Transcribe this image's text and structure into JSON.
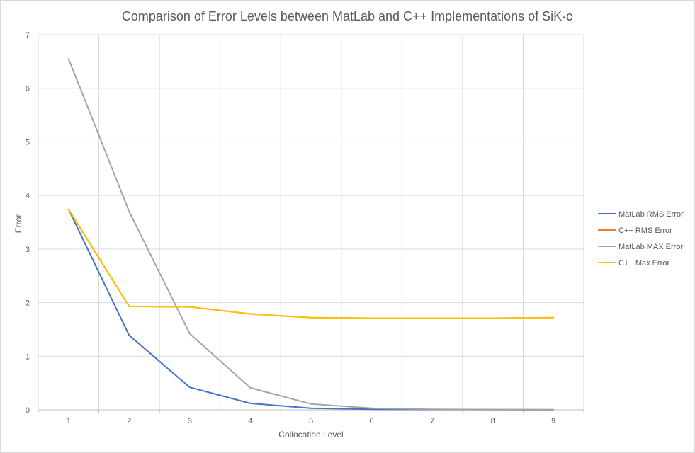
{
  "chart_data": {
    "type": "line",
    "title": "Comparison of Error Levels between MatLab and C++ Implementations of SiK-c",
    "xlabel": "Collocation Level",
    "ylabel": "Error",
    "categories": [
      "1",
      "2",
      "3",
      "4",
      "5",
      "6",
      "7",
      "8",
      "9"
    ],
    "ylim": [
      0,
      7
    ],
    "yticks": [
      0,
      1,
      2,
      3,
      4,
      5,
      6,
      7
    ],
    "grid": true,
    "legend_position": "right",
    "series": [
      {
        "name": "MatLab RMS Error",
        "color": "#4472c4",
        "values": [
          3.74,
          1.39,
          0.42,
          0.12,
          0.03,
          0.01,
          0.005,
          0.002,
          0.001
        ]
      },
      {
        "name": "C++ RMS Error",
        "color": "#ed7d31",
        "values": [
          3.74,
          1.93,
          1.92,
          1.79,
          1.72,
          1.71,
          1.71,
          1.71,
          1.72
        ]
      },
      {
        "name": "MatLab MAX Error",
        "color": "#a5a5a5",
        "values": [
          6.55,
          3.7,
          1.42,
          0.41,
          0.11,
          0.03,
          0.01,
          0.005,
          0.002
        ]
      },
      {
        "name": "C++ Max Error",
        "color": "#ffc000",
        "values": [
          3.74,
          1.93,
          1.92,
          1.79,
          1.72,
          1.71,
          1.71,
          1.71,
          1.72
        ]
      }
    ]
  }
}
